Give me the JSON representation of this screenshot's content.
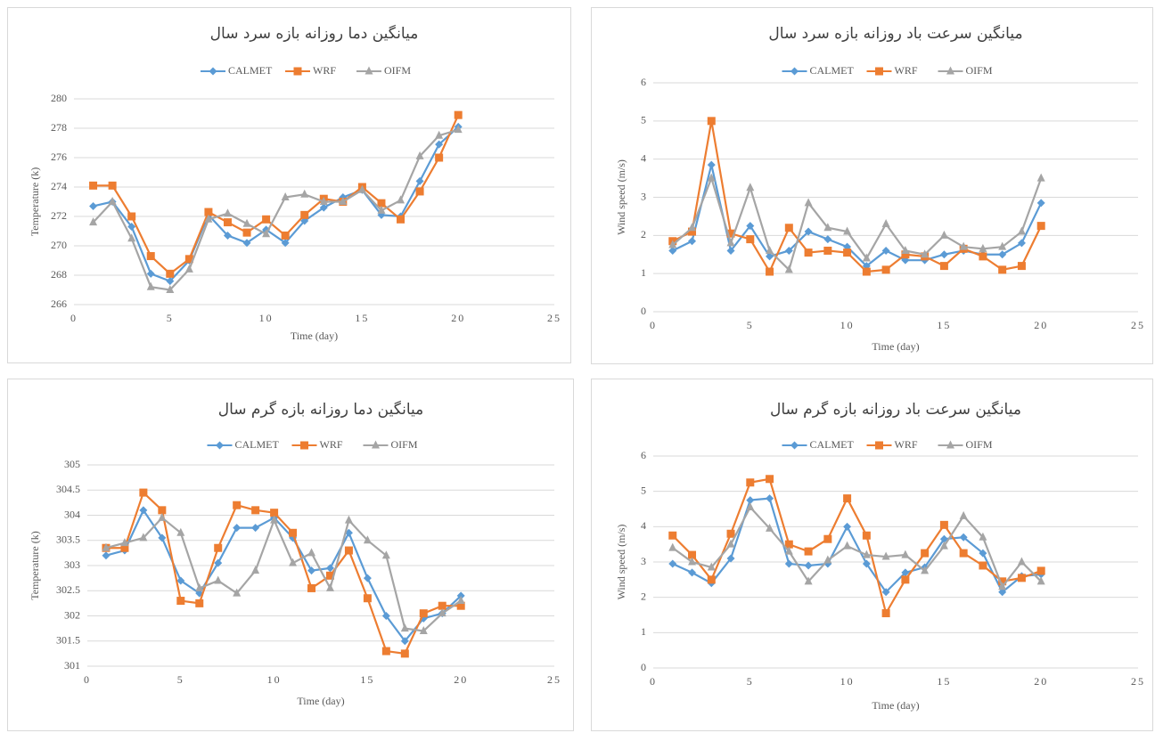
{
  "chart_data": [
    {
      "type": "line",
      "title": "میانگین دما روزانه بازه سرد سال",
      "xlabel": "Time (day)",
      "ylabel": "Temperature (k)",
      "x": [
        1,
        2,
        3,
        4,
        5,
        6,
        7,
        8,
        9,
        10,
        11,
        12,
        13,
        14,
        15,
        16,
        17,
        18,
        19,
        20
      ],
      "xlim": [
        0,
        25
      ],
      "xticks": [
        0,
        5,
        10,
        15,
        20,
        25
      ],
      "ylim": [
        266,
        280
      ],
      "yticks": [
        266,
        268,
        270,
        272,
        274,
        276,
        278,
        280
      ],
      "grid": true,
      "legend": "top",
      "series": [
        {
          "name": "CALMET",
          "color": "#5b9bd5",
          "marker": "diamond",
          "values": [
            272.7,
            273.0,
            271.3,
            268.1,
            267.6,
            269.0,
            272.1,
            270.7,
            270.2,
            271.1,
            270.2,
            271.7,
            272.6,
            273.3,
            273.8,
            272.1,
            272.0,
            274.4,
            276.9,
            278.1
          ]
        },
        {
          "name": "WRF",
          "color": "#ed7d31",
          "marker": "square",
          "values": [
            274.1,
            274.1,
            272.0,
            269.3,
            268.1,
            269.1,
            272.3,
            271.6,
            270.9,
            271.8,
            270.7,
            272.1,
            273.2,
            273.0,
            274.0,
            272.9,
            271.8,
            273.7,
            276.0,
            278.9
          ]
        },
        {
          "name": "OIFM",
          "color": "#a5a5a5",
          "marker": "triangle",
          "values": [
            271.6,
            273.0,
            270.5,
            267.2,
            267.0,
            268.4,
            271.8,
            272.2,
            271.5,
            270.8,
            273.3,
            273.5,
            273.0,
            273.0,
            273.8,
            272.4,
            273.1,
            276.1,
            277.5,
            277.9
          ]
        }
      ]
    },
    {
      "type": "line",
      "title": "میانگین سرعت باد روزانه بازه سرد سال",
      "xlabel": "Time (day)",
      "ylabel": "Wind speed (m/s)",
      "x": [
        1,
        2,
        3,
        4,
        5,
        6,
        7,
        8,
        9,
        10,
        11,
        12,
        13,
        14,
        15,
        16,
        17,
        18,
        19,
        20
      ],
      "xlim": [
        0,
        25
      ],
      "xticks": [
        0,
        5,
        10,
        15,
        20,
        25
      ],
      "ylim": [
        0,
        6
      ],
      "yticks": [
        0,
        1,
        2,
        3,
        4,
        5,
        6
      ],
      "grid": true,
      "legend": "top",
      "series": [
        {
          "name": "CALMET",
          "color": "#5b9bd5",
          "marker": "diamond",
          "values": [
            1.6,
            1.85,
            3.85,
            1.6,
            2.25,
            1.45,
            1.6,
            2.1,
            1.9,
            1.7,
            1.2,
            1.6,
            1.35,
            1.35,
            1.5,
            1.6,
            1.5,
            1.5,
            1.8,
            2.85
          ]
        },
        {
          "name": "WRF",
          "color": "#ed7d31",
          "marker": "square",
          "values": [
            1.85,
            2.1,
            5.0,
            2.05,
            1.9,
            1.05,
            2.2,
            1.55,
            1.6,
            1.55,
            1.05,
            1.1,
            1.5,
            1.45,
            1.2,
            1.65,
            1.45,
            1.1,
            1.2,
            2.25
          ]
        },
        {
          "name": "OIFM",
          "color": "#a5a5a5",
          "marker": "triangle",
          "values": [
            1.75,
            2.2,
            3.5,
            1.8,
            3.25,
            1.6,
            1.1,
            2.85,
            2.2,
            2.1,
            1.4,
            2.3,
            1.6,
            1.5,
            2.0,
            1.7,
            1.65,
            1.7,
            2.1,
            3.5
          ]
        }
      ]
    },
    {
      "type": "line",
      "title": "میانگین دما روزانه بازه گرم سال",
      "xlabel": "Time (day)",
      "ylabel": "Temperature (k)",
      "x": [
        1,
        2,
        3,
        4,
        5,
        6,
        7,
        8,
        9,
        10,
        11,
        12,
        13,
        14,
        15,
        16,
        17,
        18,
        19,
        20
      ],
      "xlim": [
        0,
        25
      ],
      "xticks": [
        0,
        5,
        10,
        15,
        20,
        25
      ],
      "ylim": [
        301,
        305
      ],
      "yticks": [
        301,
        301.5,
        302,
        302.5,
        303,
        303.5,
        304,
        304.5,
        305
      ],
      "grid": true,
      "legend": "top",
      "series": [
        {
          "name": "CALMET",
          "color": "#5b9bd5",
          "marker": "diamond",
          "values": [
            303.2,
            303.3,
            304.1,
            303.55,
            302.7,
            302.45,
            303.05,
            303.75,
            303.75,
            303.95,
            303.55,
            302.9,
            302.95,
            303.65,
            302.75,
            302.0,
            301.5,
            301.95,
            302.05,
            302.4
          ]
        },
        {
          "name": "WRF",
          "color": "#ed7d31",
          "marker": "square",
          "values": [
            303.35,
            303.35,
            304.45,
            304.1,
            302.3,
            302.25,
            303.35,
            304.2,
            304.1,
            304.05,
            303.65,
            302.55,
            302.8,
            303.3,
            302.35,
            301.3,
            301.25,
            302.05,
            302.2,
            302.2
          ]
        },
        {
          "name": "OIFM",
          "color": "#a5a5a5",
          "marker": "triangle",
          "values": [
            303.35,
            303.45,
            303.55,
            303.95,
            303.65,
            302.55,
            302.7,
            302.45,
            302.9,
            303.9,
            303.05,
            303.25,
            302.55,
            303.9,
            303.5,
            303.2,
            301.75,
            301.7,
            302.05,
            302.3
          ]
        }
      ]
    },
    {
      "type": "line",
      "title": "میانگین سرعت باد روزانه بازه گرم سال",
      "xlabel": "Time (day)",
      "ylabel": "Wind speed (m/s)",
      "x": [
        1,
        2,
        3,
        4,
        5,
        6,
        7,
        8,
        9,
        10,
        11,
        12,
        13,
        14,
        15,
        16,
        17,
        18,
        19,
        20
      ],
      "xlim": [
        0,
        25
      ],
      "xticks": [
        0,
        5,
        10,
        15,
        20,
        25
      ],
      "ylim": [
        0,
        6
      ],
      "yticks": [
        0,
        1,
        2,
        3,
        4,
        5,
        6
      ],
      "grid": true,
      "legend": "top",
      "series": [
        {
          "name": "CALMET",
          "color": "#5b9bd5",
          "marker": "diamond",
          "values": [
            2.95,
            2.7,
            2.4,
            3.1,
            4.75,
            4.8,
            2.95,
            2.9,
            2.95,
            4.0,
            2.95,
            2.15,
            2.7,
            2.85,
            3.65,
            3.7,
            3.25,
            2.15,
            2.6,
            2.65
          ]
        },
        {
          "name": "WRF",
          "color": "#ed7d31",
          "marker": "square",
          "values": [
            3.75,
            3.2,
            2.5,
            3.8,
            5.25,
            5.35,
            3.5,
            3.3,
            3.65,
            4.8,
            3.75,
            1.55,
            2.5,
            3.25,
            4.05,
            3.25,
            2.9,
            2.45,
            2.55,
            2.75
          ]
        },
        {
          "name": "OIFM",
          "color": "#a5a5a5",
          "marker": "triangle",
          "values": [
            3.4,
            3.0,
            2.85,
            3.5,
            4.55,
            3.95,
            3.3,
            2.45,
            3.05,
            3.45,
            3.2,
            3.15,
            3.2,
            2.75,
            3.45,
            4.3,
            3.7,
            2.3,
            3.0,
            2.45
          ]
        }
      ]
    }
  ]
}
